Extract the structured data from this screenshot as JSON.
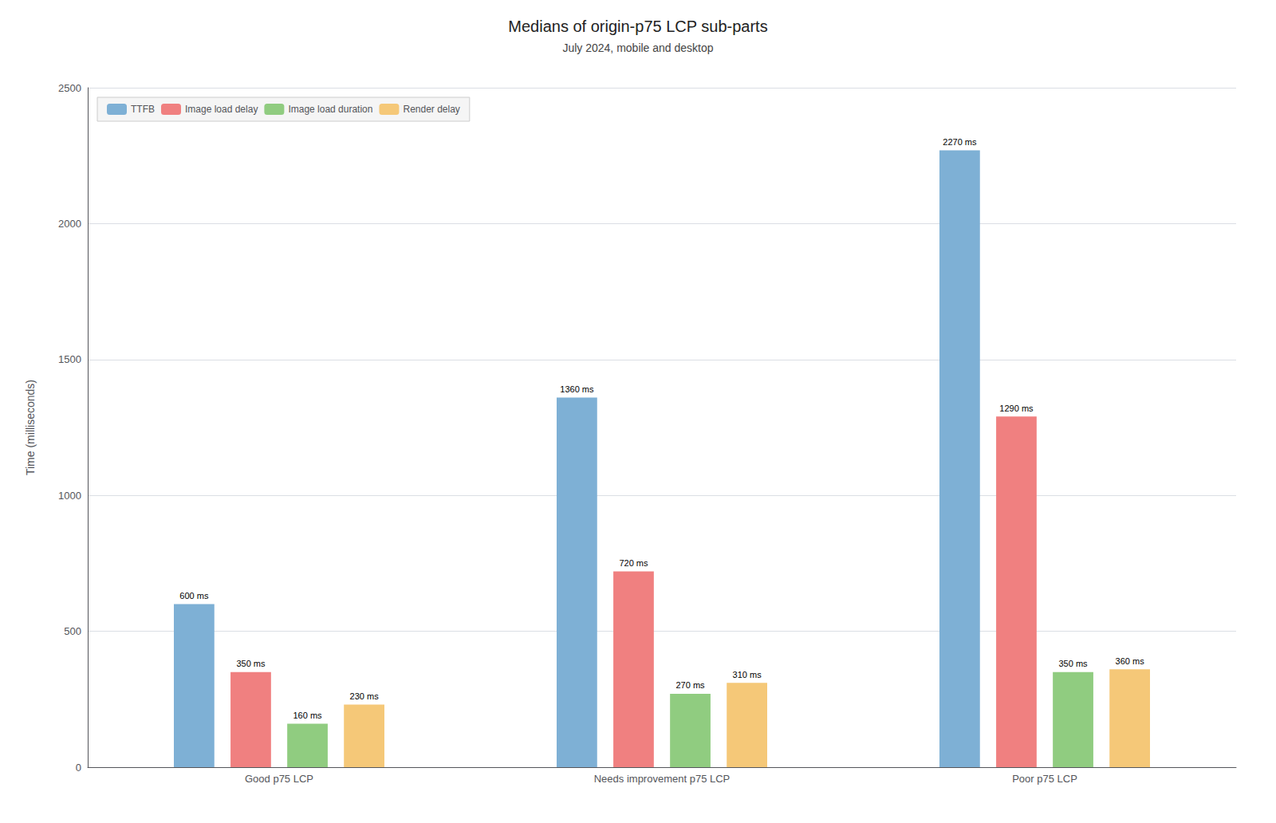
{
  "chart_data": {
    "type": "bar",
    "title": "Medians of origin-p75 LCP sub-parts",
    "subtitle": "July 2024, mobile and desktop",
    "categories": [
      "Good p75 LCP",
      "Needs improvement p75 LCP",
      "Poor p75 LCP"
    ],
    "series": [
      {
        "name": "TTFB",
        "color": "#7EB0D5",
        "values": [
          600,
          1360,
          2270
        ],
        "value_labels": [
          "600 ms",
          "1360 ms",
          "2270 ms"
        ]
      },
      {
        "name": "Image load delay",
        "color": "#F08080",
        "values": [
          350,
          720,
          1290
        ],
        "value_labels": [
          "350 ms",
          "720 ms",
          "1290 ms"
        ]
      },
      {
        "name": "Image load duration",
        "color": "#90CC80",
        "values": [
          160,
          270,
          350
        ],
        "value_labels": [
          "160 ms",
          "270 ms",
          "350 ms"
        ]
      },
      {
        "name": "Render delay",
        "color": "#F5C878",
        "values": [
          230,
          310,
          360
        ],
        "value_labels": [
          "230 ms",
          "310 ms",
          "360 ms"
        ]
      }
    ],
    "ylabel": "Time (milliseconds)",
    "ylim": [
      0,
      2500
    ],
    "yticks": [
      0,
      500,
      1000,
      1500,
      2000,
      2500
    ],
    "grid": true,
    "legend": "upper left",
    "data_labels": true
  }
}
